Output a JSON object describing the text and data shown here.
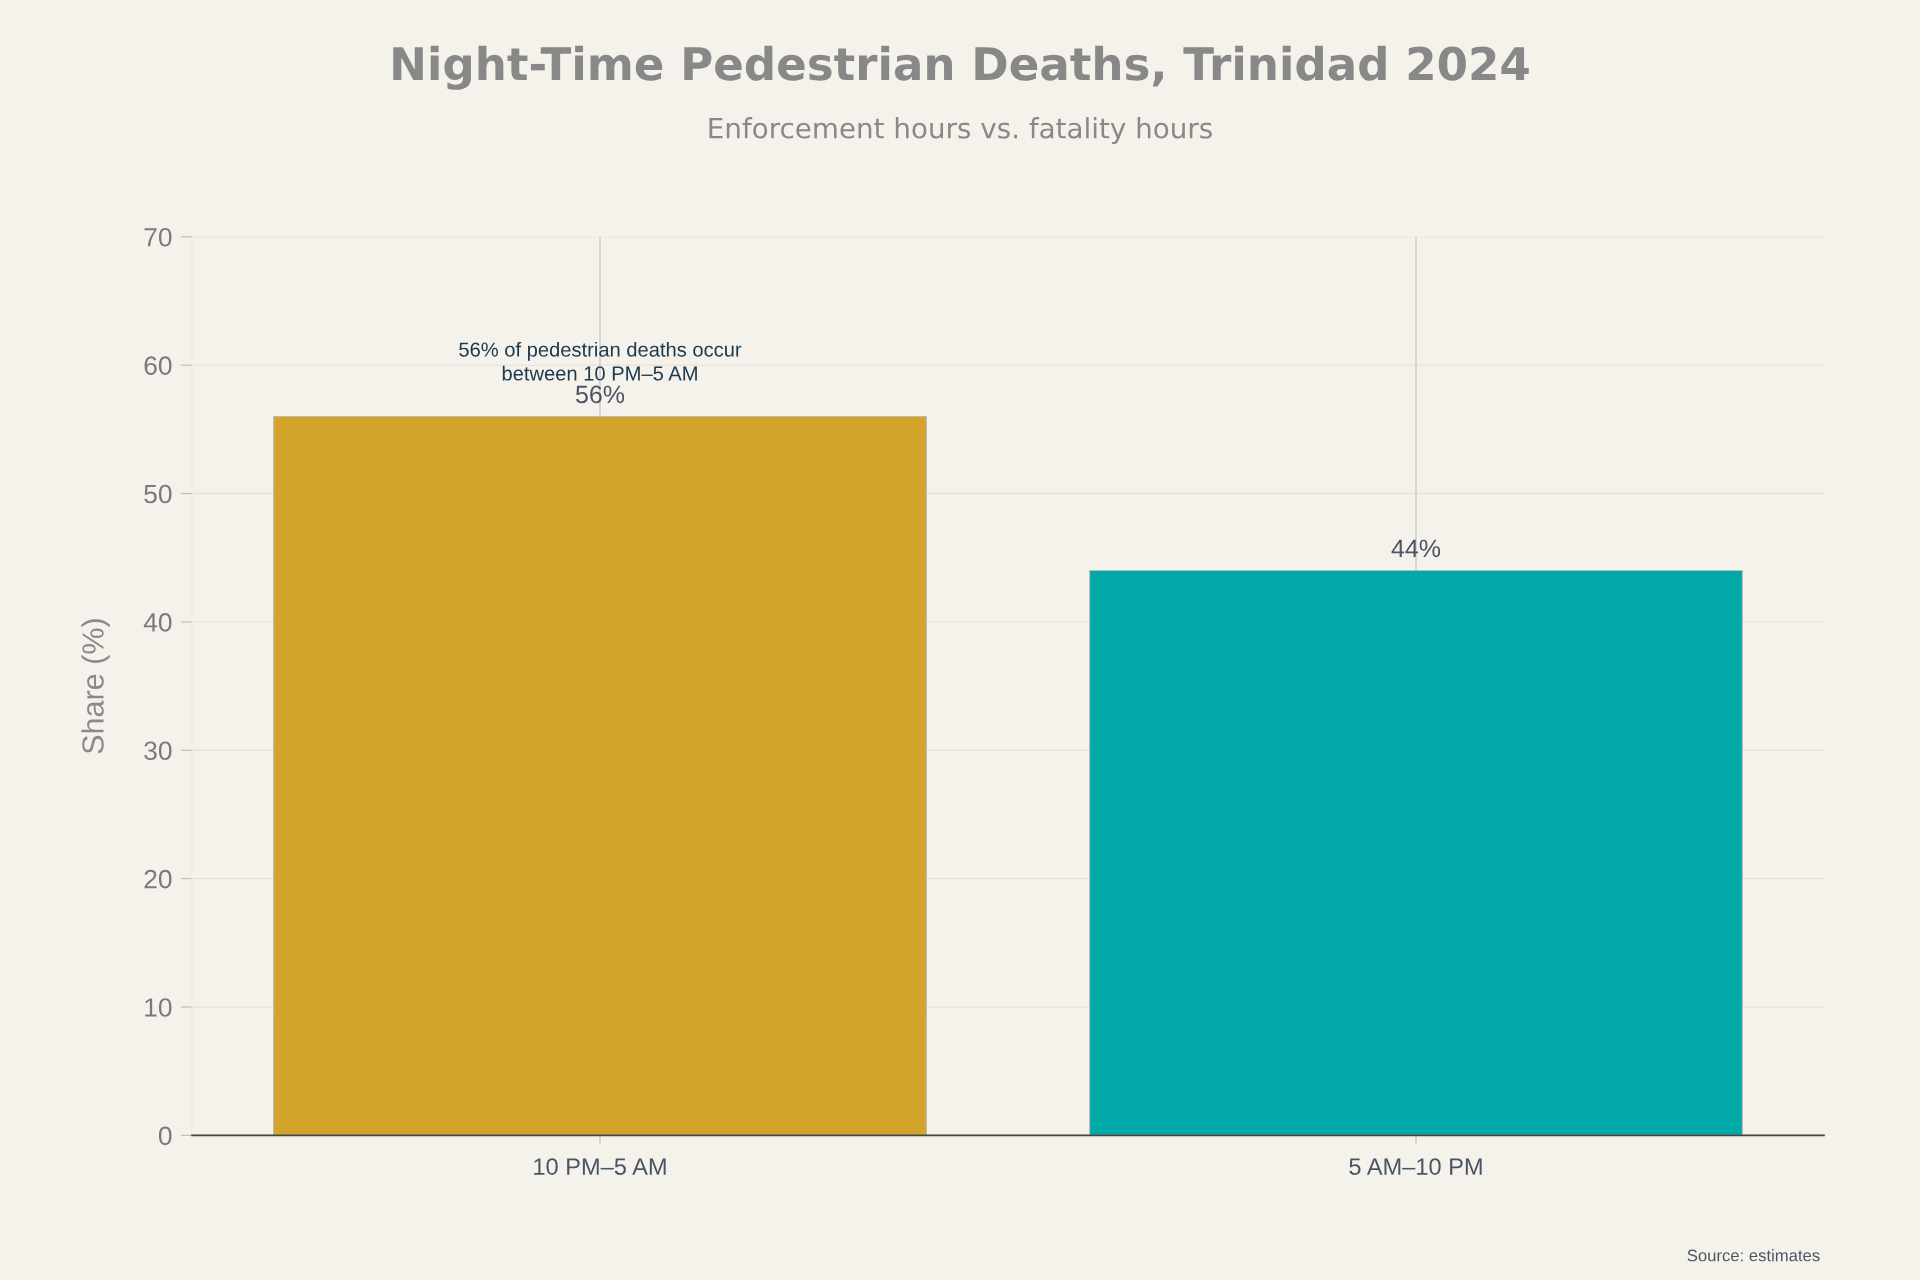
{
  "chart_data": {
    "type": "bar",
    "title": "Night-Time Pedestrian Deaths, Trinidad 2024",
    "subtitle": "Enforcement hours vs. fatality hours",
    "ylabel": "Share (%)",
    "categories": [
      "10 PM–5 AM",
      "5 AM–10 PM"
    ],
    "values": [
      56,
      44
    ],
    "colors": [
      "#d4a32a",
      "#00a8a8"
    ],
    "value_labels": [
      "56%",
      "44%"
    ],
    "ylim": [
      0,
      70
    ],
    "yticks": [
      0,
      10,
      20,
      30,
      40,
      50,
      60,
      70
    ],
    "grid": true,
    "legend": false,
    "annotations": [
      {
        "text": "56% of pedestrian deaths occur\nbetween 10 PM–5 AM",
        "x": "10 PM–5 AM",
        "y": 56
      },
      "Source: estimates"
    ]
  }
}
